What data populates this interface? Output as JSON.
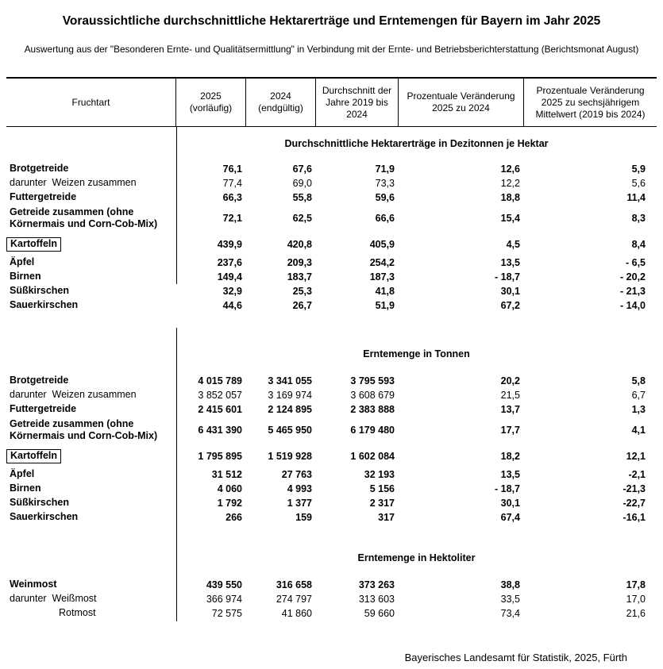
{
  "page": {
    "title": "Voraussichtliche durchschnittliche Hektarerträge und Erntemengen für Bayern im Jahr 2025",
    "subtitle": "Auswertung aus der \"Besonderen Ernte- und Qualitätsermittlung\" in Verbindung mit der Ernte- und Betriebsberichterstattung (Berichtsmonat August)",
    "footer": "Bayerisches Landesamt für Statistik, 2025, Fürth"
  },
  "table": {
    "columns": [
      "Fruchtart",
      "2025 (vorläufig)",
      "2024 (endgültig)",
      "Durchschnitt der Jahre 2019 bis 2024",
      "Prozentuale Veränderung 2025 zu 2024",
      "Prozentuale Veränderung 2025 zu sechsjährigem Mittelwert (2019 bis 2024)"
    ],
    "sections": [
      {
        "title": "Durchschnittliche Hektarerträge in Dezitonnen je Hektar",
        "rows": [
          {
            "label": "Brotgetreide",
            "values": [
              "76,1",
              "67,6",
              "71,9",
              "12,6",
              "5,9"
            ]
          },
          {
            "label": "darunter  Weizen zusammen",
            "values": [
              "77,4",
              "69,0",
              "73,3",
              "12,2",
              "5,6"
            ]
          },
          {
            "label": "Futtergetreide",
            "values": [
              "66,3",
              "55,8",
              "59,6",
              "18,8",
              "11,4"
            ]
          },
          {
            "label": "Getreide zusammen (ohne Körnermais und Corn-Cob-Mix)",
            "values": [
              "72,1",
              "62,5",
              "66,6",
              "15,4",
              "8,3"
            ]
          },
          {
            "label": "Kartoffeln",
            "values": [
              "439,9",
              "420,8",
              "405,9",
              "4,5",
              "8,4"
            ]
          },
          {
            "label": "Äpfel",
            "values": [
              "237,6",
              "209,3",
              "254,2",
              "13,5",
              "- 6,5"
            ]
          },
          {
            "label": "Birnen",
            "values": [
              "149,4",
              "183,7",
              "187,3",
              "- 18,7",
              "- 20,2"
            ]
          },
          {
            "label": "Süßkirschen",
            "values": [
              "32,9",
              "25,3",
              "41,8",
              "30,1",
              "- 21,3"
            ]
          },
          {
            "label": "Sauerkirschen",
            "values": [
              "44,6",
              "26,7",
              "51,9",
              "67,2",
              "- 14,0"
            ]
          }
        ]
      },
      {
        "title": "Erntemenge in Tonnen",
        "rows": [
          {
            "label": "Brotgetreide",
            "values": [
              "4 015 789",
              "3 341 055",
              "3 795 593",
              "20,2",
              "5,8"
            ]
          },
          {
            "label": "darunter  Weizen zusammen",
            "values": [
              "3 852 057",
              "3 169 974",
              "3 608 679",
              "21,5",
              "6,7"
            ]
          },
          {
            "label": "Futtergetreide",
            "values": [
              "2 415 601",
              "2 124 895",
              "2 383 888",
              "13,7",
              "1,3"
            ]
          },
          {
            "label": "Getreide zusammen (ohne Körnermais und Corn-Cob-Mix)",
            "values": [
              "6 431 390",
              "5 465 950",
              "6 179 480",
              "17,7",
              "4,1"
            ]
          },
          {
            "label": "Kartoffeln",
            "values": [
              "1 795 895",
              "1 519 928",
              "1 602 084",
              "18,2",
              "12,1"
            ]
          },
          {
            "label": "Äpfel",
            "values": [
              "31 512",
              "27 763",
              "32 193",
              "13,5",
              "-2,1"
            ]
          },
          {
            "label": "Birnen",
            "values": [
              "4 060",
              "4 993",
              "5 156",
              "- 18,7",
              "-21,3"
            ]
          },
          {
            "label": "Süßkirschen",
            "values": [
              "1 792",
              "1 377",
              "2 317",
              "30,1",
              "-22,7"
            ]
          },
          {
            "label": "Sauerkirschen",
            "values": [
              "266",
              "159",
              "317",
              "67,4",
              "-16,1"
            ]
          }
        ]
      },
      {
        "title": "Erntemenge in Hektoliter",
        "rows": [
          {
            "label": "Weinmost",
            "values": [
              "439 550",
              "316 658",
              "373 263",
              "38,8",
              "17,8"
            ]
          },
          {
            "label": "darunter  Weißmost",
            "values": [
              "366 974",
              "274 797",
              "313 603",
              "33,5",
              "17,0"
            ]
          },
          {
            "label": "Rotmost",
            "values": [
              "72 575",
              "41 860",
              "59 660",
              "73,4",
              "21,6"
            ]
          }
        ]
      }
    ]
  }
}
